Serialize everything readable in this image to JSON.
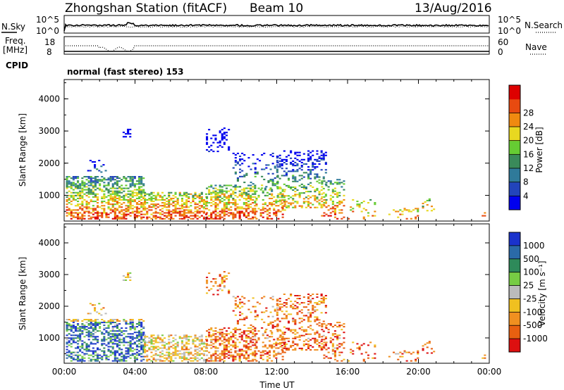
{
  "chart_data": [
    {
      "type": "header",
      "station_title": "Zhongshan Station (fitACF)",
      "beam_label": "Beam 10",
      "date": "13/Aug/2016",
      "cpid_label": "CPID",
      "cpid_text": "normal (fast stereo) 153",
      "nsky_label": "N.Sky",
      "nsky_ticks": [
        "10^5",
        "10^0"
      ],
      "nsearch_label": "N.Search",
      "nsearch_ticks": [
        "10^5",
        "10^0"
      ],
      "freq_label_line1": "Freq.",
      "freq_label_line2": "[MHz]",
      "freq_ticks": [
        "18",
        "8"
      ],
      "nave_label": "Nave",
      "nave_ticks": [
        "60",
        "0"
      ]
    },
    {
      "type": "heatmap",
      "name": "power",
      "ylabel": "Slant Range [km]",
      "ylim": [
        200,
        4600
      ],
      "yticks": [
        "1000",
        "2000",
        "3000",
        "4000"
      ],
      "xlim": [
        0,
        24
      ],
      "colorbar_label": "Power [dB]",
      "colorbar_ticks": [
        "4",
        "8",
        "12",
        "16",
        "20",
        "24",
        "28"
      ],
      "colors": [
        "#0000ee",
        "#2244bb",
        "#2f7a9a",
        "#3a8a5a",
        "#66cc33",
        "#e8d820",
        "#f08a10",
        "#e84a10",
        "#dd0000"
      ]
    },
    {
      "type": "heatmap",
      "name": "velocity",
      "ylabel": "Slant Range [km]",
      "ylim": [
        200,
        4600
      ],
      "yticks": [
        "1000",
        "2000",
        "3000",
        "4000"
      ],
      "xlabel": "Time UT",
      "xticks": [
        "00:00",
        "04:00",
        "08:00",
        "12:00",
        "16:00",
        "20:00",
        "00:00"
      ],
      "xlim": [
        0,
        24
      ],
      "colorbar_label": "Velocity [m s⁻¹]",
      "colorbar_ticks": [
        "1000",
        "500",
        "100",
        "25",
        "-25",
        "-100",
        "-500",
        "-1000"
      ],
      "colors": [
        "#1a33cc",
        "#2a6aa8",
        "#2e8a5a",
        "#77cc44",
        "#bbbbbb",
        "#f0c020",
        "#f09020",
        "#e86010",
        "#dd1010"
      ]
    }
  ]
}
